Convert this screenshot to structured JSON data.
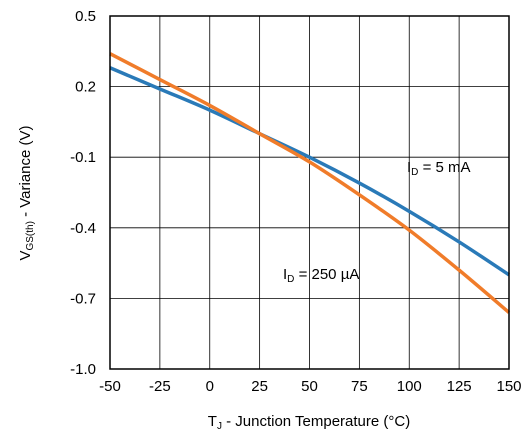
{
  "chart_data": {
    "type": "line",
    "xlabel": {
      "prefix": "T",
      "sub": "J",
      "suffix": " - Junction Temperature (°C)"
    },
    "ylabel": {
      "prefix": "V",
      "sub": "GS(th)",
      "suffix": " - Variance (V)"
    },
    "xlim": [
      -50,
      150
    ],
    "ylim": [
      -1.0,
      0.5
    ],
    "xticks": [
      -50,
      -25,
      0,
      25,
      50,
      75,
      100,
      125,
      150
    ],
    "yticks": [
      0.5,
      0.2,
      -0.1,
      -0.4,
      -0.7,
      -1.0
    ],
    "xtick_labels": [
      "-50",
      "-25",
      "0",
      "25",
      "50",
      "75",
      "100",
      "125",
      "150"
    ],
    "ytick_labels": [
      "0.5",
      "0.2",
      "-0.1",
      "-0.4",
      "-0.7",
      "-1.0"
    ],
    "grid": true,
    "series": [
      {
        "label": {
          "prefix": "I",
          "sub": "D",
          "suffix": " = 5 mA"
        },
        "color": "#2a7ab8",
        "x": [
          -50,
          -25,
          0,
          25,
          50,
          75,
          100,
          125,
          150
        ],
        "y": [
          0.28,
          0.19,
          0.1,
          0.0,
          -0.1,
          -0.21,
          -0.33,
          -0.46,
          -0.6
        ]
      },
      {
        "label": {
          "prefix": "I",
          "sub": "D",
          "suffix": " = 250 µA"
        },
        "color": "#f07c2a",
        "x": [
          -50,
          -25,
          0,
          25,
          50,
          75,
          100,
          125,
          150
        ],
        "y": [
          0.34,
          0.23,
          0.12,
          0.0,
          -0.12,
          -0.26,
          -0.41,
          -0.58,
          -0.76
        ]
      }
    ]
  }
}
